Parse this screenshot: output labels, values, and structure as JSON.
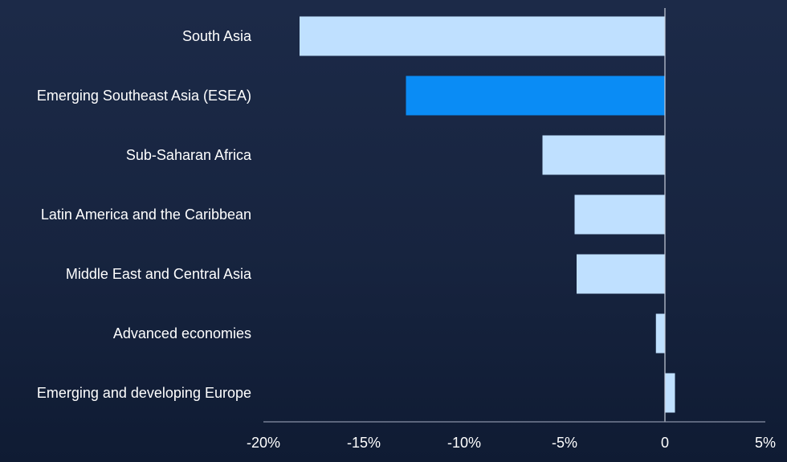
{
  "chart_data": {
    "type": "bar",
    "orientation": "horizontal",
    "categories": [
      "South Asia",
      "Emerging Southeast Asia (ESEA)",
      "Sub-Saharan Africa",
      "Latin America and the Caribbean",
      "Middle East and Central Asia",
      "Advanced economies",
      "Emerging and developing Europe"
    ],
    "values": [
      -18.2,
      -12.9,
      -6.1,
      -4.5,
      -4.4,
      -0.45,
      0.5
    ],
    "highlight_index": 1,
    "xlim": [
      -20,
      5
    ],
    "xticks": [
      -20,
      -15,
      -10,
      -5,
      0,
      5
    ],
    "xtick_labels": [
      "-20%",
      "-15%",
      "-10%",
      "-5%",
      "0",
      "5%"
    ],
    "grid": false,
    "title": "",
    "xlabel": "",
    "ylabel": ""
  },
  "colors": {
    "bar": "#bfe0ff",
    "highlight": "#0a8cf5",
    "axis": "#8a93a8",
    "zero_line": "#c9cfdb"
  }
}
